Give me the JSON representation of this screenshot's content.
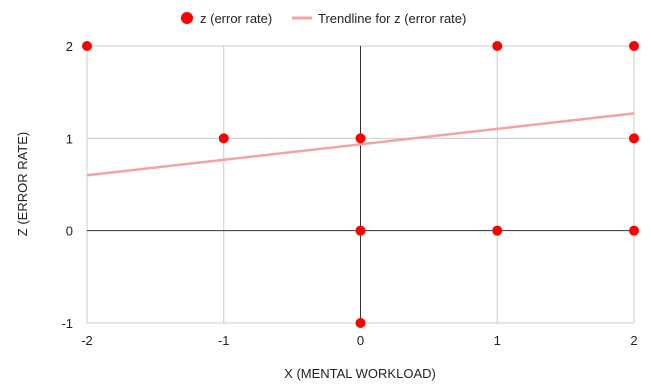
{
  "chart_data": {
    "type": "scatter",
    "title": "",
    "xlabel": "X (MENTAL WORKLOAD)",
    "ylabel": "Z (ERROR RATE)",
    "xlim": [
      -2,
      2
    ],
    "ylim": [
      -1,
      2
    ],
    "x_ticks": [
      "-2",
      "-1",
      "0",
      "1",
      "2"
    ],
    "y_ticks": [
      "-1",
      "0",
      "1",
      "2"
    ],
    "grid": true,
    "legend_position": "top",
    "series": [
      {
        "name": "z (error rate)",
        "color": "#ff0000",
        "points": [
          {
            "x": -2,
            "y": 2
          },
          {
            "x": 1,
            "y": 2
          },
          {
            "x": 2,
            "y": 2
          },
          {
            "x": -1,
            "y": 1
          },
          {
            "x": 0,
            "y": 1
          },
          {
            "x": 2,
            "y": 1
          },
          {
            "x": 0,
            "y": 0
          },
          {
            "x": 1,
            "y": 0
          },
          {
            "x": 2,
            "y": 0
          },
          {
            "x": 0,
            "y": -1
          }
        ]
      }
    ],
    "trendline": {
      "name": "Trendline for z (error rate)",
      "color": "#f4a3a3",
      "start": {
        "x": -2,
        "y": 0.6
      },
      "end": {
        "x": 2,
        "y": 1.27
      }
    }
  }
}
